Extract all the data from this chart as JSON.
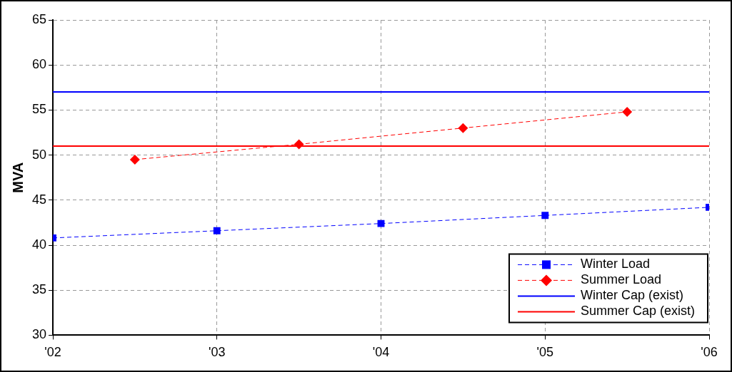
{
  "chart_data": {
    "type": "line",
    "ylabel": "MVA",
    "xlim": [
      2002,
      2006
    ],
    "ylim": [
      30,
      65
    ],
    "xticks": [
      {
        "value": 2002,
        "label": "'02"
      },
      {
        "value": 2003,
        "label": "'03"
      },
      {
        "value": 2004,
        "label": "'04"
      },
      {
        "value": 2005,
        "label": "'05"
      },
      {
        "value": 2006,
        "label": "'06"
      }
    ],
    "yticks": [
      30,
      35,
      40,
      45,
      50,
      55,
      60,
      65
    ],
    "grid": true,
    "legend": "bottom right",
    "series": [
      {
        "name": "Winter Load",
        "color": "#0000ff",
        "x": [
          2002,
          2003,
          2004,
          2005,
          2006
        ],
        "values": [
          40.8,
          41.6,
          42.4,
          43.3,
          44.2
        ],
        "marker": "square",
        "line_style": "dashed"
      },
      {
        "name": "Summer Load",
        "color": "#ff0000",
        "x": [
          2002.5,
          2003.5,
          2004.5,
          2005.5
        ],
        "values": [
          49.5,
          51.2,
          53.0,
          54.8
        ],
        "marker": "diamond",
        "line_style": "dashed"
      },
      {
        "name": "Winter Cap (exist)",
        "color": "#0000ff",
        "x": [
          2002,
          2006
        ],
        "values": [
          57,
          57
        ],
        "marker": "none",
        "line_style": "solid"
      },
      {
        "name": "Summer Cap (exist)",
        "color": "#ff0000",
        "x": [
          2002,
          2006
        ],
        "values": [
          51,
          51
        ],
        "marker": "none",
        "line_style": "solid"
      }
    ]
  }
}
